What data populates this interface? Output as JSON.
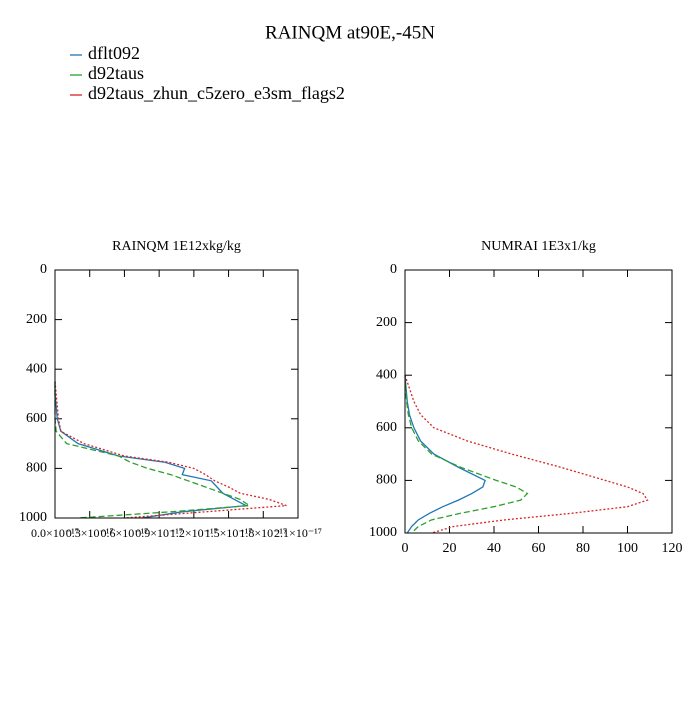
{
  "title": "RAINQM at90E,-45N",
  "chart_data": [
    {
      "type": "line",
      "title": "RAINQM  1E12xkg/kg",
      "y": [
        450,
        500,
        550,
        600,
        650,
        700,
        750,
        775,
        800,
        825,
        850,
        875,
        900,
        925,
        950,
        975,
        1000
      ],
      "series": [
        {
          "name": "dflt092",
          "color": "#1f77b4",
          "style": "solid",
          "values": [
            0,
            0,
            1e-19,
            2e-19,
            5e-19,
            2e-18,
            5.5e-18,
            9.5e-18,
            1.12e-17,
            1.1e-17,
            1.35e-17,
            1.4e-17,
            1.45e-17,
            1.55e-17,
            1.65e-17,
            1.1e-17,
            7.5e-18
          ]
        },
        {
          "name": "d92taus",
          "color": "#2ca02c",
          "style": "dashed",
          "values": [
            0,
            0,
            0,
            0,
            1e-19,
            1e-18,
            5.5e-18,
            6.5e-18,
            8e-18,
            1e-17,
            1.15e-17,
            1.3e-17,
            1.45e-17,
            1.6e-17,
            1.68e-17,
            1e-17,
            2e-18
          ]
        },
        {
          "name": "d92taus_zhun_c5zero_e3sm_flags2",
          "color": "#d62728",
          "style": "dotted",
          "values": [
            0,
            1e-19,
            2e-19,
            3e-19,
            5e-19,
            2.5e-18,
            6e-18,
            9.8e-18,
            1.2e-17,
            1.3e-17,
            1.38e-17,
            1.5e-17,
            1.6e-17,
            1.85e-17,
            2e-17,
            1.3e-17,
            6e-18
          ]
        }
      ],
      "xlim": [
        0,
        2.1e-17
      ],
      "xticks": [
        {
          "value": 0,
          "label": "0.0×10⁻¹⁷"
        },
        {
          "value": 3e-18,
          "label": "0.3×10⁻¹⁷"
        },
        {
          "value": 6e-18,
          "label": "0.6×10⁻¹⁷"
        },
        {
          "value": 9e-18,
          "label": "0.9×10⁻¹⁷"
        },
        {
          "value": 1.2e-17,
          "label": "1.2×10⁻¹⁷"
        },
        {
          "value": 1.5e-17,
          "label": "1.5×10⁻¹⁷"
        },
        {
          "value": 1.8e-17,
          "label": "1.8×10⁻¹⁷"
        },
        {
          "value": 2.1e-17,
          "label": "2.1×10⁻¹⁷"
        }
      ],
      "ylim": [
        0,
        1000
      ],
      "yticks": [
        0,
        200,
        400,
        600,
        800,
        1000
      ]
    },
    {
      "type": "line",
      "title": "NUMRAI  1E3x1/kg",
      "y": [
        400,
        450,
        500,
        550,
        600,
        650,
        700,
        750,
        800,
        825,
        850,
        875,
        900,
        925,
        950,
        975,
        1000
      ],
      "series": [
        {
          "color": "#1f77b4",
          "style": "solid",
          "values": [
            0,
            0.5,
            1,
            2,
            4,
            7,
            13,
            24,
            36,
            35,
            30,
            24,
            17,
            11,
            6,
            3,
            1
          ]
        },
        {
          "color": "#2ca02c",
          "style": "dashed",
          "values": [
            0,
            0.3,
            0.7,
            1.5,
            3,
            6,
            12,
            25,
            41,
            50,
            55,
            52,
            40,
            25,
            12,
            6,
            3
          ]
        },
        {
          "color": "#d62728",
          "style": "dotted",
          "values": [
            0,
            2,
            4,
            7,
            13,
            28,
            48,
            70,
            90,
            100,
            107,
            109,
            100,
            75,
            45,
            22,
            12
          ]
        }
      ],
      "xlim": [
        0,
        120
      ],
      "xticks": [
        0,
        20,
        40,
        60,
        80,
        100,
        120
      ],
      "ylim": [
        0,
        1000
      ],
      "yticks": [
        0,
        200,
        400,
        600,
        800,
        1000
      ]
    }
  ]
}
